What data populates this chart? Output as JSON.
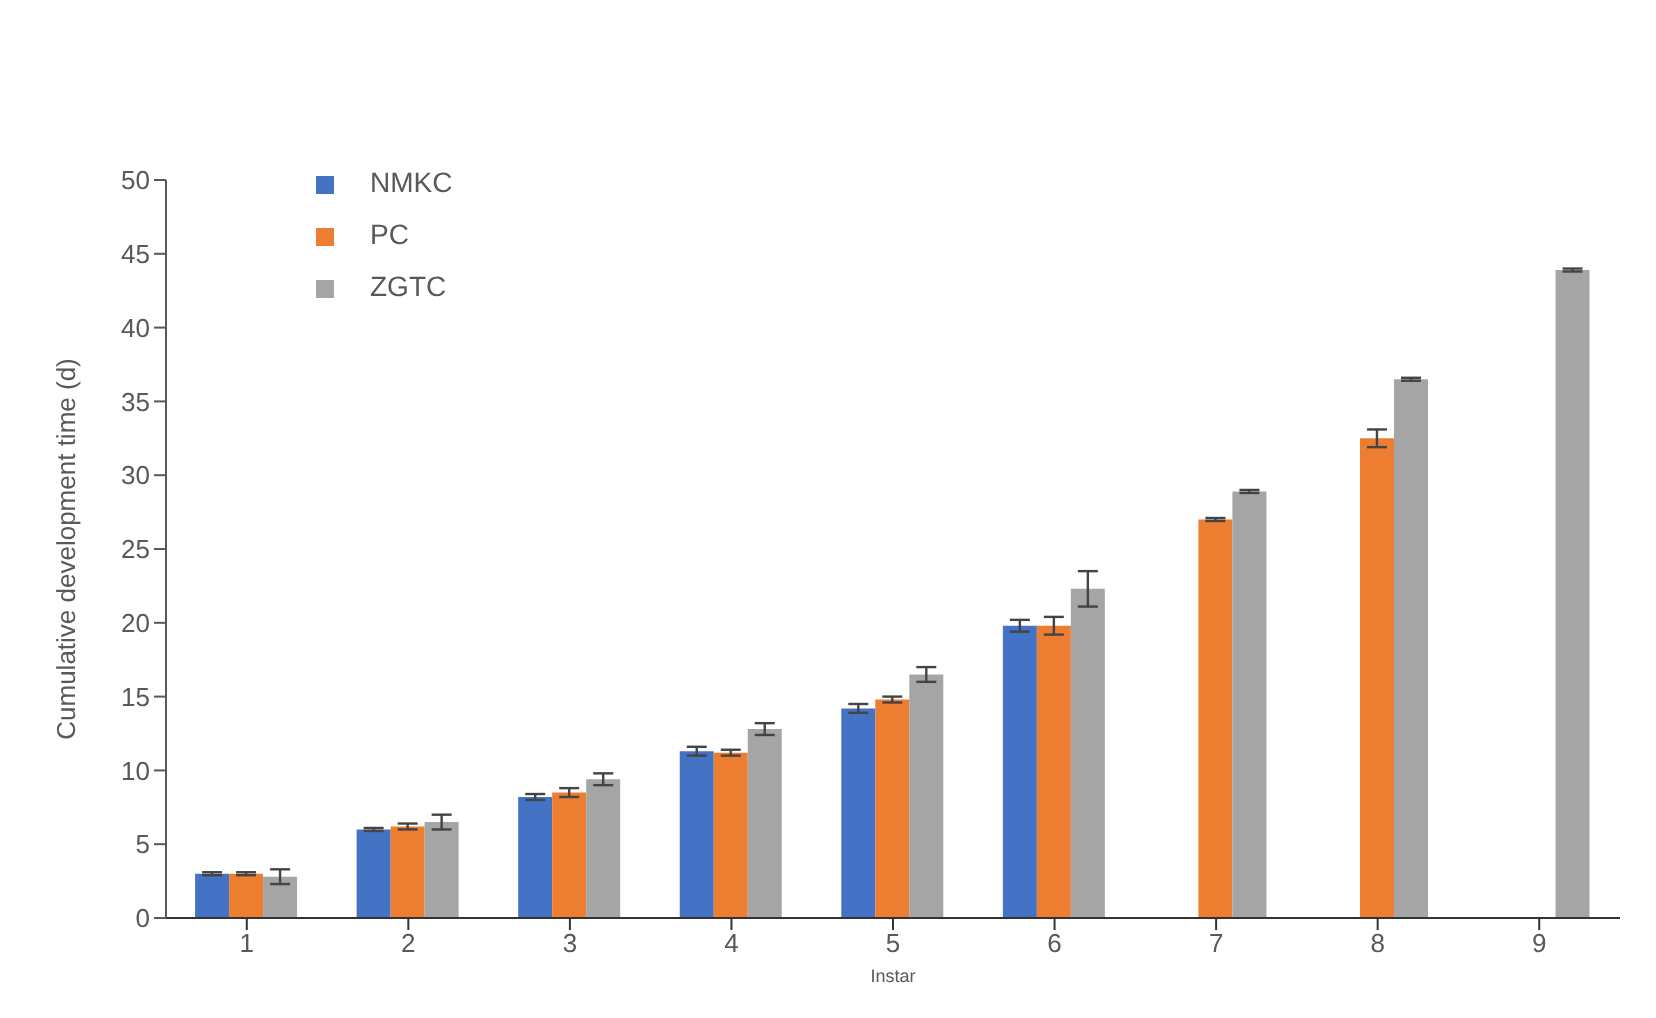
{
  "chart_data": {
    "type": "bar",
    "xlabel": "Instar",
    "ylabel": "Cumulative development time (d)",
    "categories": [
      "1",
      "2",
      "3",
      "4",
      "5",
      "6",
      "7",
      "8",
      "9"
    ],
    "series": [
      {
        "name": "NMKC",
        "color": "#4472c4",
        "values": [
          3.0,
          6.0,
          8.2,
          11.3,
          14.2,
          19.8,
          null,
          null,
          null
        ],
        "errors": [
          0.1,
          0.1,
          0.2,
          0.3,
          0.3,
          0.4,
          null,
          null,
          null
        ]
      },
      {
        "name": "PC",
        "color": "#ed7d31",
        "values": [
          3.0,
          6.2,
          8.5,
          11.2,
          14.8,
          19.8,
          27.0,
          32.5,
          null
        ],
        "errors": [
          0.1,
          0.2,
          0.3,
          0.2,
          0.2,
          0.6,
          0.1,
          0.6,
          null
        ]
      },
      {
        "name": "ZGTC",
        "color": "#a5a5a5",
        "values": [
          2.8,
          6.5,
          9.4,
          12.8,
          16.5,
          22.3,
          28.9,
          36.5,
          43.9
        ],
        "errors": [
          0.5,
          0.5,
          0.4,
          0.4,
          0.5,
          1.2,
          0.1,
          0.1,
          0.1
        ]
      }
    ],
    "ylim": [
      0,
      50
    ],
    "yticks": [
      0,
      5,
      10,
      15,
      20,
      25,
      30,
      35,
      40,
      45,
      50
    ],
    "grid": false,
    "legend": "top left"
  }
}
